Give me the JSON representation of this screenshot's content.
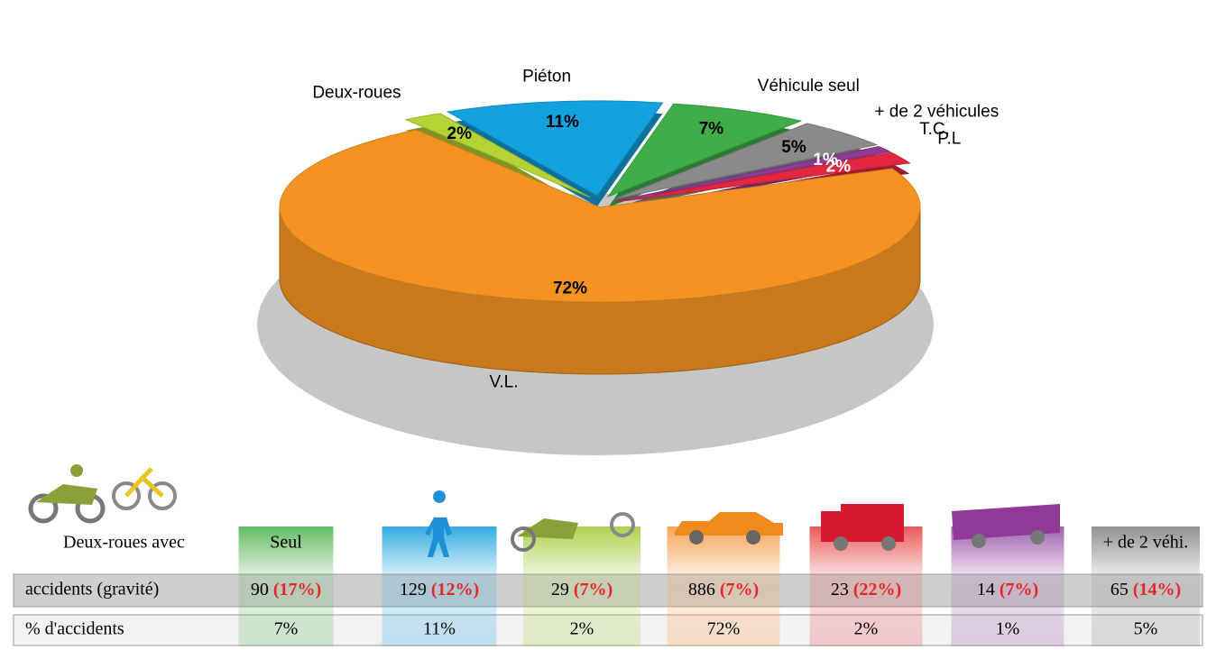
{
  "chart_data": {
    "type": "pie3d",
    "categories": [
      "Deux-roues",
      "Piéton",
      "Véhicule seul",
      "+ de 2 véhicules",
      "T.C.",
      "P.L",
      "V.L."
    ],
    "values": [
      2,
      11,
      7,
      5,
      1,
      2,
      72
    ],
    "value_labels": [
      "2%",
      "11%",
      "7%",
      "5%",
      "1%",
      "2%",
      "72%"
    ],
    "colors": [
      "#b5d334",
      "#12a3de",
      "#3fae49",
      "#8a8a8a",
      "#8e3a96",
      "#e3263f",
      "#f39322"
    ]
  },
  "table": {
    "header_first": "Deux-roues avec",
    "header_second": "Seul",
    "header_last": "+ de 2 véhi.",
    "colors": [
      "#5cb85c",
      "#2aa8e0",
      "#a8cf45",
      "#f6a04d",
      "#e8504f",
      "#9b59a8",
      "#8c8c8c"
    ],
    "rows": [
      {
        "label": "accidents (gravité)",
        "cells": [
          {
            "count": "90",
            "severity": "(17%)"
          },
          {
            "count": "129",
            "severity": "(12%)"
          },
          {
            "count": "29",
            "severity": "(7%)"
          },
          {
            "count": "886",
            "severity": "(7%)"
          },
          {
            "count": "23",
            "severity": "(22%)"
          },
          {
            "count": "14",
            "severity": "(7%)"
          },
          {
            "count": "65",
            "severity": "(14%)"
          }
        ]
      },
      {
        "label": "% d'accidents",
        "cells": [
          "7%",
          "11%",
          "2%",
          "72%",
          "2%",
          "1%",
          "5%"
        ]
      }
    ]
  }
}
